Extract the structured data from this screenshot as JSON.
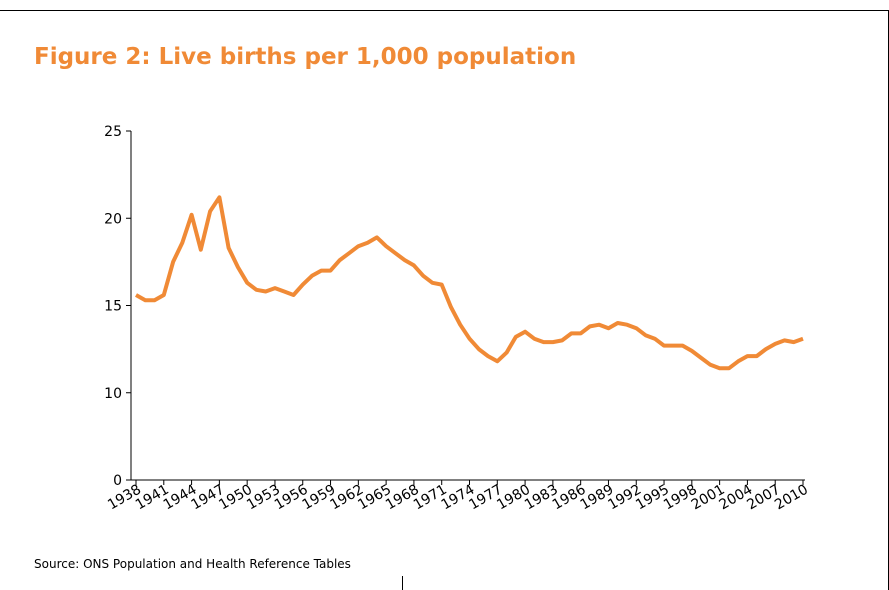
{
  "chart_data": {
    "type": "line",
    "title": "Figure 2: Live births per 1,000 population",
    "source": "Source: ONS Population and Health Reference Tables",
    "x": [
      1938,
      1939,
      1940,
      1941,
      1942,
      1943,
      1944,
      1945,
      1946,
      1947,
      1948,
      1949,
      1950,
      1951,
      1952,
      1953,
      1954,
      1955,
      1956,
      1957,
      1958,
      1959,
      1960,
      1961,
      1962,
      1963,
      1964,
      1965,
      1966,
      1967,
      1968,
      1969,
      1970,
      1971,
      1972,
      1973,
      1974,
      1975,
      1976,
      1977,
      1978,
      1979,
      1980,
      1981,
      1982,
      1983,
      1984,
      1985,
      1986,
      1987,
      1988,
      1989,
      1990,
      1991,
      1992,
      1993,
      1994,
      1995,
      1996,
      1997,
      1998,
      1999,
      2000,
      2001,
      2002,
      2003,
      2004,
      2005,
      2006,
      2007,
      2008,
      2009,
      2010
    ],
    "series": [
      {
        "color": "#f08a36",
        "values": [
          15.6,
          15.3,
          15.3,
          15.6,
          17.5,
          18.6,
          20.2,
          18.2,
          20.4,
          21.2,
          18.3,
          17.2,
          16.3,
          15.9,
          15.8,
          16.0,
          15.8,
          15.6,
          16.2,
          16.7,
          17.0,
          17.0,
          17.6,
          18.0,
          18.4,
          18.6,
          18.9,
          18.4,
          18.0,
          17.6,
          17.3,
          16.7,
          16.3,
          16.2,
          14.9,
          13.9,
          13.1,
          12.5,
          12.1,
          11.8,
          12.3,
          13.2,
          13.5,
          13.1,
          12.9,
          12.9,
          13.0,
          13.4,
          13.4,
          13.8,
          13.9,
          13.7,
          14.0,
          13.9,
          13.7,
          13.3,
          13.1,
          12.7,
          12.7,
          12.7,
          12.4,
          12.0,
          11.6,
          11.4,
          11.4,
          11.8,
          12.1,
          12.1,
          12.5,
          12.8,
          13.0,
          12.9,
          13.1
        ]
      }
    ],
    "xlim": [
      1938,
      2010
    ],
    "xticks": [
      1938,
      1941,
      1944,
      1947,
      1950,
      1953,
      1956,
      1959,
      1962,
      1965,
      1968,
      1971,
      1974,
      1977,
      1980,
      1983,
      1986,
      1989,
      1992,
      1995,
      1998,
      2001,
      2004,
      2007,
      2010
    ],
    "ylim": [
      0,
      25
    ],
    "yticks": [
      0,
      10,
      15,
      20,
      25
    ],
    "broken_axis": true,
    "grid": false
  }
}
